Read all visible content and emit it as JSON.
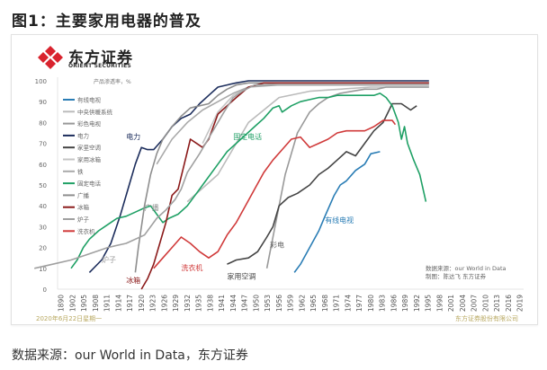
{
  "title": "图1：主要家用电器的普及",
  "logo": {
    "name_cn": "东方证券",
    "name_en": "ORIENT SECURITIES",
    "brand_color": "#d9232e"
  },
  "footer": {
    "date": "2020年6月22日星期一",
    "company": "东方证券股份有限公司",
    "source": "数据来源：our World in Data，东方证券"
  },
  "chart_data": {
    "type": "line",
    "title": "",
    "ylabel": "产品渗透率，%",
    "xlabel": "",
    "ylim": [
      0,
      100
    ],
    "yticks": [
      0,
      10,
      20,
      30,
      40,
      50,
      60,
      70,
      80,
      90,
      100
    ],
    "xtick_labels": [
      "1890",
      "1902",
      "1905",
      "1908",
      "1911",
      "1914",
      "1917",
      "1920",
      "1923",
      "1926",
      "1929",
      "1932",
      "1935",
      "1938",
      "1941",
      "1944",
      "1947",
      "1950",
      "1953",
      "1956",
      "1959",
      "1962",
      "1965",
      "1968",
      "1971",
      "1974",
      "1977",
      "1980",
      "1983",
      "1986",
      "1989",
      "1992",
      "1995",
      "1998",
      "2001",
      "2004",
      "2007",
      "2010",
      "2013",
      "2016",
      "2019"
    ],
    "grid": false,
    "legend": "top-left",
    "notes": [
      "数据来源：our World in Data",
      "制图：陈达飞 东方证券"
    ],
    "series": [
      {
        "name": "有线电视",
        "color": "#2a7db5",
        "label": "有线电视",
        "x": [
          1975,
          1977,
          1980,
          1983,
          1985,
          1988,
          1990,
          1992,
          1995,
          1998,
          2000,
          2003
        ],
        "y": [
          8,
          12,
          20,
          28,
          35,
          45,
          50,
          52,
          57,
          60,
          65,
          66
        ]
      },
      {
        "name": "中央供暖系统",
        "color": "#bbbbbb",
        "label": "",
        "x": [
          1940,
          1950,
          1960,
          1970,
          1980,
          1990,
          2000,
          2010,
          2019
        ],
        "y": [
          42,
          55,
          80,
          92,
          95,
          96,
          97,
          97,
          97
        ]
      },
      {
        "name": "彩色电视",
        "color": "#999999",
        "label": "彩电",
        "x": [
          1966,
          1968,
          1970,
          1972,
          1974,
          1976,
          1978,
          1980,
          1983,
          1986,
          1990,
          1994,
          1998,
          2002,
          2005,
          2019
        ],
        "y": [
          10,
          25,
          40,
          55,
          65,
          75,
          80,
          85,
          89,
          92,
          94,
          95,
          96,
          96,
          97,
          97
        ]
      },
      {
        "name": "电力",
        "color": "#1c2d5c",
        "label": "电力",
        "x": [
          1908,
          1912,
          1915,
          1918,
          1921,
          1923,
          1925,
          1927,
          1929,
          1932,
          1935,
          1938,
          1941,
          1944,
          1947,
          1950,
          1953,
          1956,
          1960,
          2019
        ],
        "y": [
          8,
          14,
          22,
          35,
          50,
          60,
          68,
          67,
          67,
          72,
          78,
          82,
          84,
          89,
          93,
          97,
          98,
          99,
          100,
          100
        ]
      },
      {
        "name": "家里空调",
        "color": "#444444",
        "label": "家用空调",
        "x": [
          1953,
          1956,
          1960,
          1963,
          1966,
          1968,
          1970,
          1973,
          1976,
          1980,
          1983,
          1986,
          1989,
          1992,
          1995,
          1998,
          2001,
          2004,
          2007,
          2010,
          2013,
          2015
        ],
        "y": [
          12,
          14,
          15,
          18,
          25,
          30,
          40,
          44,
          46,
          50,
          55,
          58,
          62,
          66,
          64,
          70,
          76,
          80,
          89,
          89,
          86,
          88
        ]
      },
      {
        "name": "家用冰箱",
        "color": "#c4c4c4",
        "label": "",
        "x": [
          1945,
          1950,
          1955,
          1960,
          1965,
          1970,
          1980,
          2019
        ],
        "y": [
          70,
          85,
          93,
          97,
          98,
          99,
          99,
          99
        ]
      },
      {
        "name": "铁",
        "color": "#aaaaaa",
        "label": "",
        "x": [
          1930,
          1935,
          1940,
          1945,
          1950,
          1955,
          1960,
          1970,
          2019
        ],
        "y": [
          60,
          72,
          80,
          86,
          90,
          94,
          97,
          98,
          98
        ]
      },
      {
        "name": "固定电话",
        "color": "#1fa065",
        "label": "固定电话",
        "x": [
          1902,
          1904,
          1906,
          1908,
          1911,
          1914,
          1917,
          1920,
          1923,
          1926,
          1928,
          1930,
          1932,
          1934,
          1937,
          1940,
          1943,
          1946,
          1950,
          1953,
          1956,
          1959,
          1962,
          1965,
          1968,
          1970,
          1971,
          1974,
          1977,
          1980,
          1983,
          1986,
          1989,
          1992,
          1995,
          1998,
          2001,
          2003,
          2005,
          2007,
          2009,
          2010,
          2011,
          2012,
          2014,
          2016,
          2018
        ],
        "y": [
          10,
          14,
          20,
          24,
          28,
          31,
          34,
          35,
          37,
          39,
          40,
          36,
          32,
          34,
          36,
          40,
          46,
          52,
          60,
          66,
          70,
          74,
          78,
          82,
          87,
          88,
          85,
          88,
          90,
          91,
          92,
          92,
          93,
          93,
          93,
          93,
          93,
          94,
          92,
          88,
          80,
          72,
          78,
          70,
          62,
          55,
          42
        ]
      },
      {
        "name": "广播",
        "color": "#8e8e8e",
        "label": "广播",
        "x": [
          1923,
          1924,
          1926,
          1928,
          1930,
          1932,
          1935,
          1938,
          1941,
          1944,
          1947,
          1950,
          1953,
          1956,
          1960,
          2019
        ],
        "y": [
          8,
          20,
          40,
          55,
          65,
          72,
          78,
          83,
          87,
          88,
          89,
          93,
          96,
          98,
          99,
          99
        ]
      },
      {
        "name": "冰箱",
        "color": "#8b1a1a",
        "label": "冰箱",
        "x": [
          1925,
          1927,
          1929,
          1931,
          1933,
          1935,
          1937,
          1939,
          1941,
          1943,
          1945,
          1947,
          1950,
          1953,
          1956,
          1960,
          1965,
          2019
        ],
        "y": [
          0,
          5,
          12,
          22,
          32,
          45,
          48,
          60,
          72,
          70,
          68,
          72,
          84,
          88,
          92,
          97,
          99,
          99
        ]
      },
      {
        "name": "炉子",
        "color": "#a0a0a0",
        "label": "炉子",
        "x": [
          1890,
          1896,
          1902,
          1908,
          1914,
          1920,
          1926,
          1930,
          1933,
          1936,
          1938,
          1940,
          1944,
          1948,
          1952,
          1955,
          1958,
          1962,
          2019
        ],
        "y": [
          10,
          12,
          14,
          17,
          20,
          22,
          26,
          34,
          38,
          43,
          48,
          56,
          65,
          75,
          85,
          92,
          95,
          98,
          98
        ]
      },
      {
        "name": "洗衣机",
        "color": "#d03a3a",
        "label": "洗衣机",
        "x": [
          1929,
          1932,
          1935,
          1938,
          1941,
          1944,
          1947,
          1950,
          1953,
          1956,
          1959,
          1962,
          1965,
          1968,
          1971,
          1974,
          1977,
          1980,
          1983,
          1986,
          1989,
          1992,
          1995,
          1998,
          2001,
          2004,
          2007,
          2008
        ],
        "y": [
          10,
          15,
          20,
          25,
          22,
          18,
          15,
          18,
          26,
          32,
          40,
          48,
          56,
          62,
          67,
          72,
          73,
          68,
          70,
          72,
          75,
          76,
          76,
          76,
          78,
          81,
          81,
          79
        ]
      }
    ],
    "annotations": [
      {
        "text": "电力",
        "x": 1920,
        "y": 72,
        "color": "#1c2d5c"
      },
      {
        "text": "广播",
        "x": 1926,
        "y": 38,
        "color": "#8e8e8e"
      },
      {
        "text": "炉子",
        "x": 1912,
        "y": 13,
        "color": "#a0a0a0"
      },
      {
        "text": "冰箱",
        "x": 1920,
        "y": 3,
        "color": "#8b1a1a"
      },
      {
        "text": "洗衣机",
        "x": 1938,
        "y": 9,
        "color": "#d03a3a"
      },
      {
        "text": "家用空调",
        "x": 1953,
        "y": 5,
        "color": "#444444"
      },
      {
        "text": "彩电",
        "x": 1967,
        "y": 20,
        "color": "#666666"
      },
      {
        "text": "固定电话",
        "x": 1955,
        "y": 72,
        "color": "#1fa065"
      },
      {
        "text": "有线电视",
        "x": 1985,
        "y": 32,
        "color": "#2a7db5"
      }
    ]
  }
}
